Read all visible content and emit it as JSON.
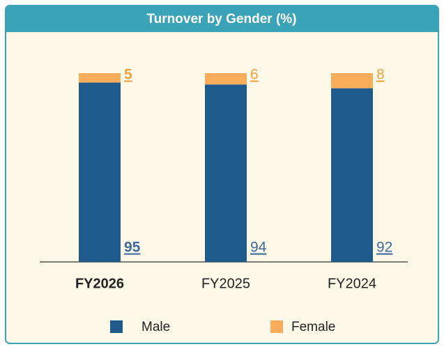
{
  "chart_data": {
    "type": "stacked_bar",
    "title": "Turnover by Gender (%)",
    "categories": [
      "FY2026",
      "FY2025",
      "FY2024"
    ],
    "series": [
      {
        "name": "Male",
        "color": "#1f5a8c",
        "values": [
          95,
          94,
          92
        ]
      },
      {
        "name": "Female",
        "color": "#f9ad5a",
        "values": [
          5,
          6,
          8
        ]
      }
    ],
    "ylim": [
      0,
      100
    ]
  }
}
